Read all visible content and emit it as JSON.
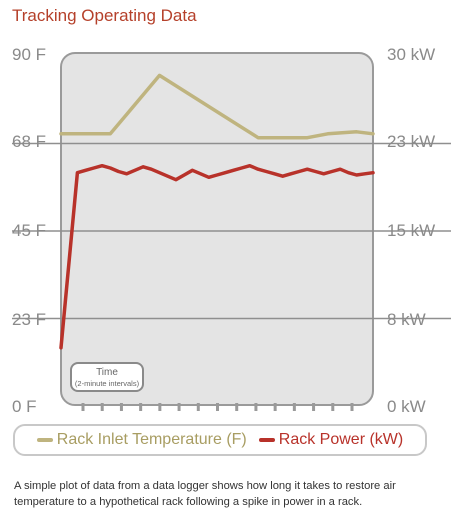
{
  "title": "Tracking Operating Data",
  "chart_data": {
    "type": "line",
    "y_left": {
      "ticks": [
        "90 F",
        "68 F",
        "45 F",
        "23 F",
        "0 F"
      ],
      "range": [
        0,
        90
      ]
    },
    "y_right": {
      "ticks": [
        "30 kW",
        "23 kW",
        "15 kW",
        "8 kW",
        "0 kW"
      ],
      "range": [
        0,
        30
      ]
    },
    "x_label": "Time",
    "x_sublabel": "(2-minute intervals)",
    "x_ticks": 15,
    "series": [
      {
        "name": "Rack Inlet Temperature (F)",
        "color": "#bfb47f",
        "axis": "left",
        "x": [
          0,
          3,
          6,
          12,
          24,
          30,
          32.5,
          36,
          38
        ],
        "y": [
          70,
          70,
          70,
          85,
          69,
          69,
          70,
          70.5,
          70
        ]
      },
      {
        "name": "Rack Power (kW)",
        "color": "#b8322a",
        "axis": "right",
        "x": [
          0,
          1,
          2,
          3,
          4,
          5,
          6,
          7,
          8,
          9,
          10,
          11,
          12,
          13,
          14,
          15,
          16,
          17,
          18,
          19,
          20,
          21,
          22,
          23,
          24,
          25,
          26,
          27,
          28,
          29,
          30,
          31,
          32,
          33,
          34,
          35,
          36,
          37,
          38
        ],
        "y": [
          5,
          12.5,
          20.0,
          20.2,
          20.4,
          20.6,
          20.4,
          20.1,
          19.9,
          20.2,
          20.5,
          20.3,
          20.0,
          19.7,
          19.4,
          19.8,
          20.2,
          19.9,
          19.6,
          19.8,
          20.0,
          20.2,
          20.4,
          20.6,
          20.3,
          20.1,
          19.9,
          19.7,
          19.9,
          20.1,
          20.3,
          20.1,
          19.9,
          20.1,
          20.3,
          20.0,
          19.8,
          19.9,
          20.0
        ]
      }
    ]
  },
  "legend": {
    "temperature": "Rack Inlet Temperature (F)",
    "power": "Rack Power (kW)"
  },
  "caption": "A simple plot of data from a data logger shows how long it takes to restore air temperature to a hypothetical rack following a spike in power in a rack."
}
